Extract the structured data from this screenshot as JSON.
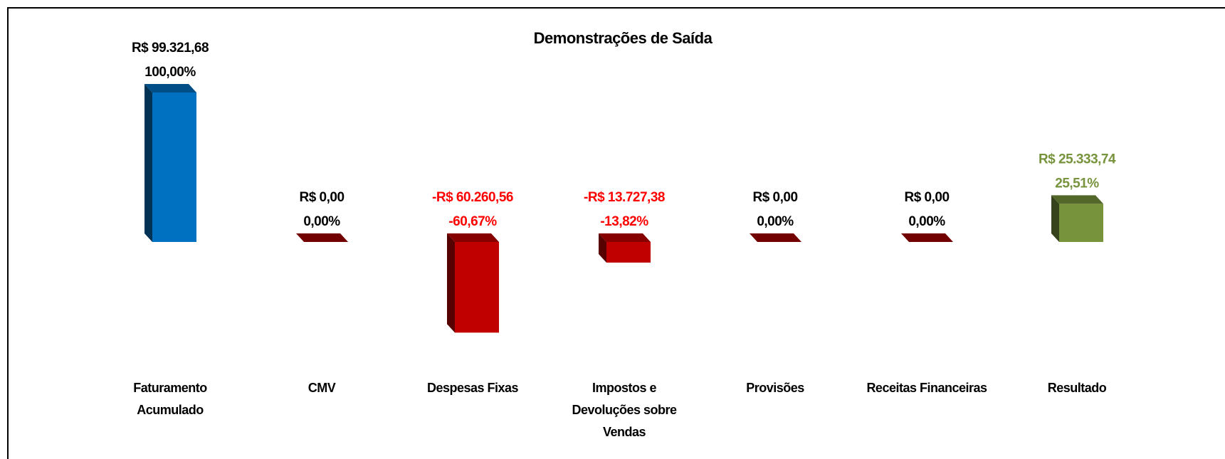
{
  "chart_data": {
    "type": "bar3d",
    "title": "Demonstrações de Saída",
    "categories": [
      "Faturamento Acumulado",
      "CMV",
      "Despesas Fixas",
      "Impostos e Devoluções sobre Vendas",
      "Provisões",
      "Receitas Financeiras",
      "Resultado"
    ],
    "values": [
      99321.68,
      0,
      -60260.56,
      -13727.38,
      0,
      0,
      25333.74
    ],
    "value_labels": [
      "R$ 99.321,68",
      "R$ 0,00",
      "-R$ 60.260,56",
      "-R$ 13.727,38",
      "R$ 0,00",
      "R$ 0,00",
      "R$ 25.333,74"
    ],
    "percentages": [
      100,
      0,
      -60.67,
      -13.82,
      0,
      0,
      25.51
    ],
    "percentage_labels": [
      "100,00%",
      "0,00%",
      "-60,67%",
      "-13,82%",
      "0,00%",
      "0,00%",
      "25,51%"
    ],
    "colors": [
      "#0070c0",
      "#c00000",
      "#c00000",
      "#c00000",
      "#c00000",
      "#c00000",
      "#77933c"
    ],
    "label_colors": [
      "#000000",
      "#000000",
      "#ff0000",
      "#ff0000",
      "#000000",
      "#000000",
      "#77933c"
    ]
  }
}
